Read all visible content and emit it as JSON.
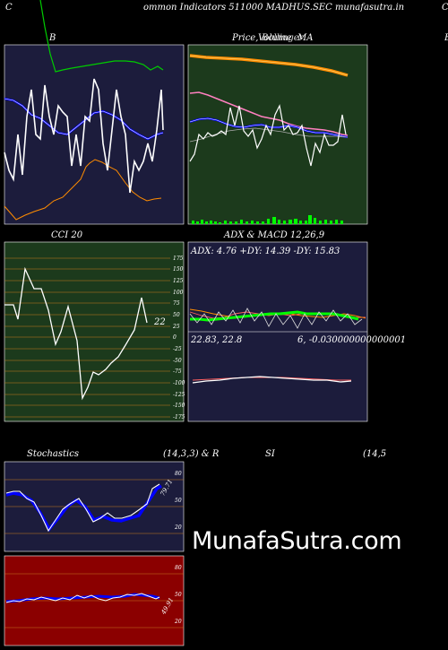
{
  "header": {
    "left_letter": "C",
    "title": "ommon  Indicators 511000  MADHUS.SEC munafasutra.in",
    "right_letter": "C"
  },
  "panels": {
    "bollinger": {
      "label": "B"
    },
    "price": {
      "label_price": "Price,",
      "label_overlap_1": "Volume",
      "label_overlap_2": "Bollinger",
      "label_ma": "MA",
      "right_edge_label": "B"
    },
    "cci": {
      "label": "CCI 20",
      "current_value": "22",
      "ticks": [
        "175",
        "150",
        "125",
        "100",
        "75",
        "50",
        "25",
        "0",
        "-25",
        "-50",
        "-75",
        "-100",
        "-125",
        "-150",
        "-175"
      ]
    },
    "adx_macd": {
      "label": "ADX  & MACD 12,26,9",
      "adx_text": "ADX: 4.76   +DY: 14.39 -DY: 15.83",
      "macd_left": "22.83,  22.8",
      "macd_right": "6,  -0.030000000000001"
    },
    "stochastics": {
      "label_left": "Stochastics",
      "label_params": "(14,3,3) & R",
      "label_si": "SI",
      "label_rsi_params": "(14,5",
      "current_value": "79.71",
      "ticks": [
        "80",
        "50",
        "20"
      ]
    },
    "rsi": {
      "current_value": "49.91",
      "ticks": [
        "80",
        "50",
        "20"
      ]
    }
  },
  "watermark": "MunafaSutra.com",
  "colors": {
    "navy_panel": "#1c1c3c",
    "green_panel": "#1c3a1c",
    "dark_red_panel": "#8b0000",
    "orange": "#ff8c00",
    "blue": "#0000ff",
    "bright_green": "#00ff00"
  }
}
